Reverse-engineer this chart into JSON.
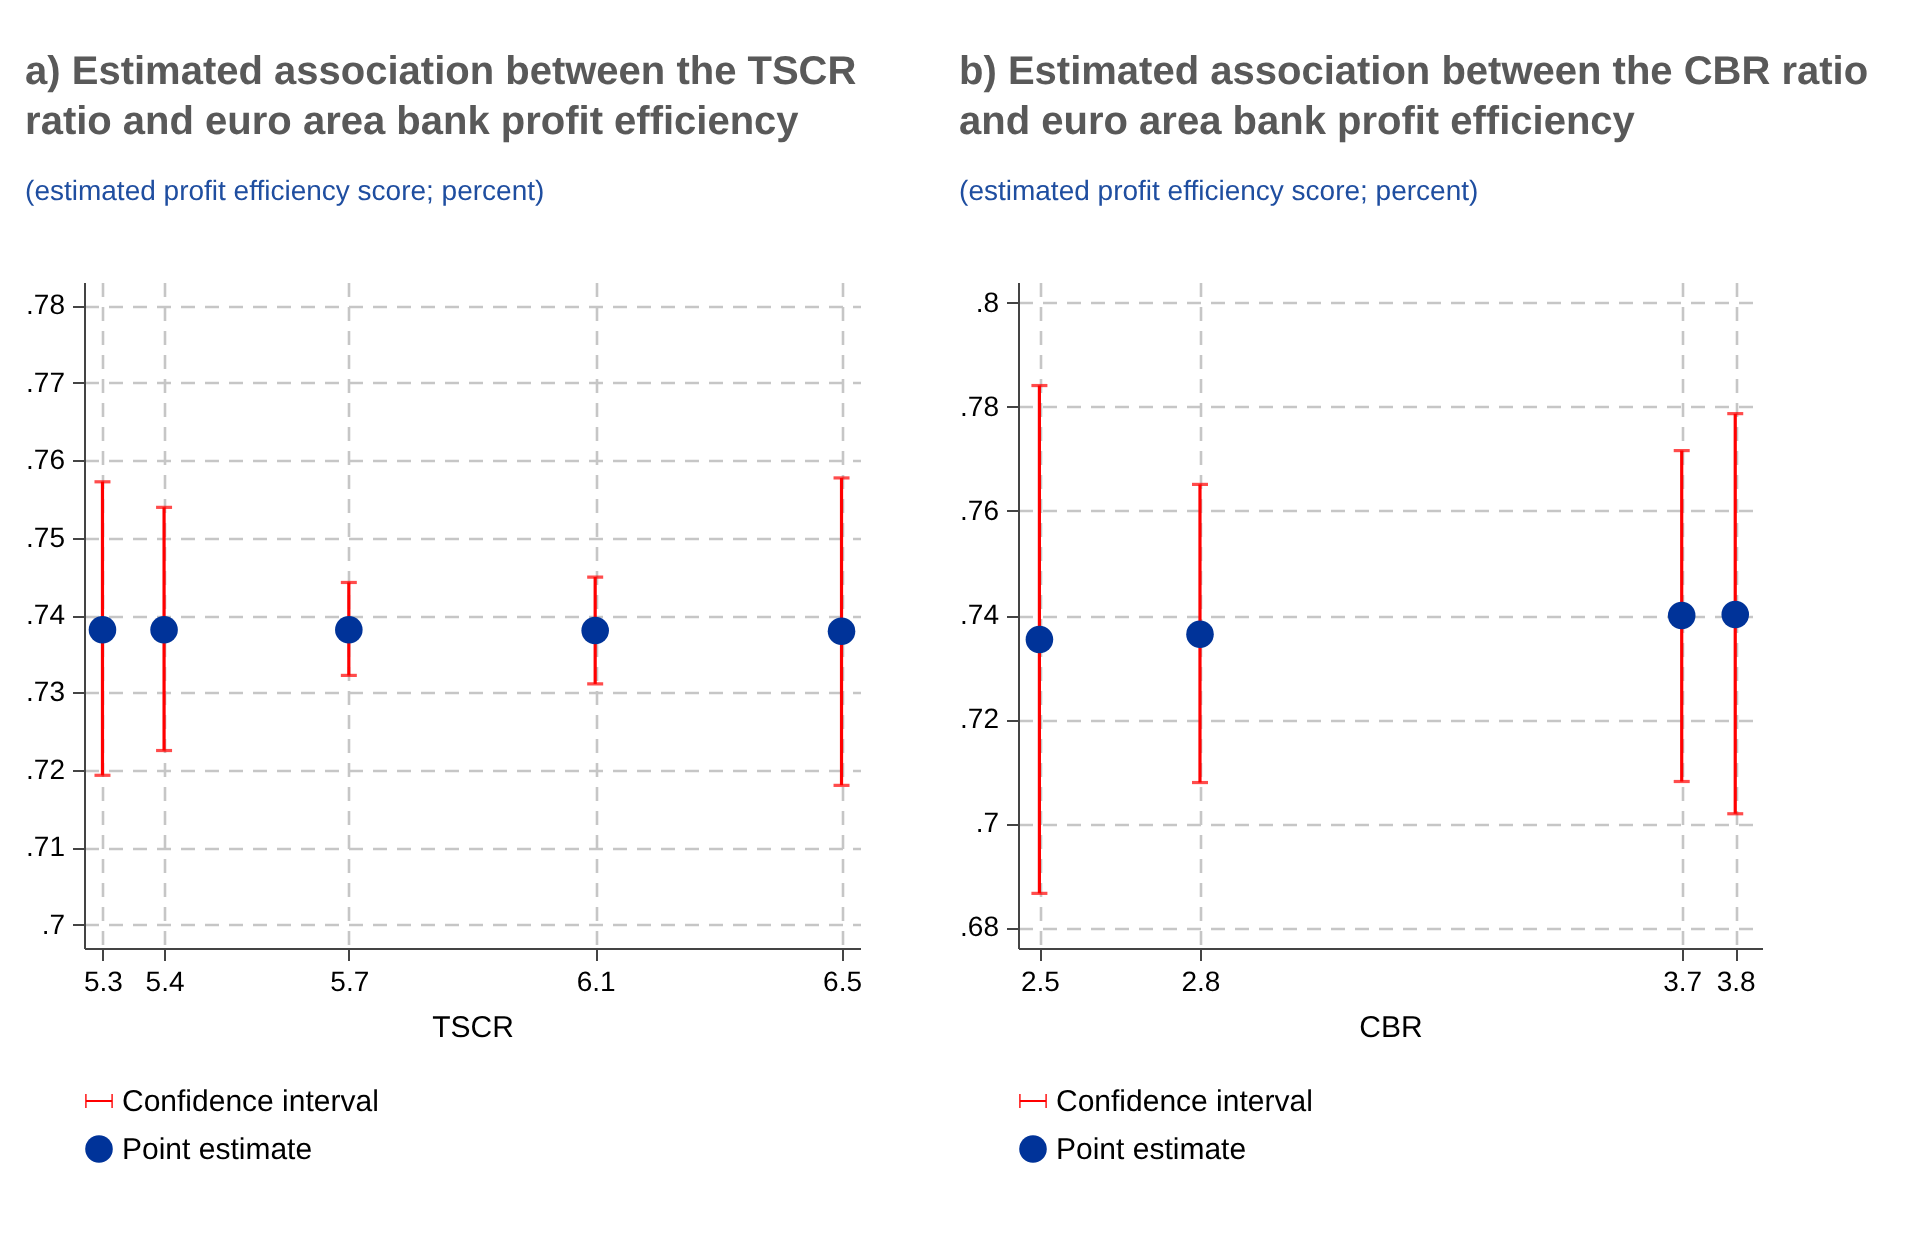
{
  "chart_data": [
    {
      "type": "scatter",
      "title": "a) Estimated association between the TSCR ratio and euro area bank profit efficiency",
      "subtitle": "(estimated profit efficiency score; percent)",
      "xlabel": "TSCR",
      "annotations": [
        "Confidence interval"
      ],
      "x": [
        5.3,
        5.4,
        5.7,
        6.1,
        6.5
      ],
      "xlim": [
        5.27,
        6.53
      ],
      "xticks": [
        5.3,
        5.4,
        5.7,
        6.1,
        6.5
      ],
      "ylim": [
        0.697,
        0.783
      ],
      "yticks": [
        {
          "value": 0.7,
          "label": ".7"
        },
        {
          "value": 0.71,
          "label": ".71"
        },
        {
          "value": 0.72,
          "label": ".72"
        },
        {
          "value": 0.73,
          "label": ".73"
        },
        {
          "value": 0.74,
          "label": ".74"
        },
        {
          "value": 0.75,
          "label": ".75"
        },
        {
          "value": 0.76,
          "label": ".76"
        },
        {
          "value": 0.77,
          "label": ".77"
        },
        {
          "value": 0.78,
          "label": ".78"
        }
      ],
      "grid": true,
      "legend": "bottom",
      "marker": "circle",
      "series": [
        {
          "name": "Point estimate",
          "color": "#003399",
          "values": [
            0.7381,
            0.7381,
            0.7381,
            0.738,
            0.7379
          ],
          "errors": [
            [
              0.7193,
              0.7572
            ],
            [
              0.7225,
              0.7539
            ],
            [
              0.7322,
              0.7442
            ],
            [
              0.7311,
              0.7449
            ],
            [
              0.718,
              0.7577
            ]
          ]
        }
      ]
    },
    {
      "type": "scatter",
      "title": "b) Estimated association between the CBR ratio and euro area bank profit efficiency",
      "subtitle": "(estimated profit efficiency score; percent)",
      "xlabel": "CBR",
      "annotations": [
        "Confidence interval"
      ],
      "x": [
        2.5,
        2.8,
        3.7,
        3.8
      ],
      "xlim": [
        2.46,
        3.85
      ],
      "xticks": [
        2.5,
        2.8,
        3.7,
        3.8
      ],
      "ylim": [
        0.676,
        0.804
      ],
      "yticks": [
        {
          "value": 0.68,
          "label": ".68"
        },
        {
          "value": 0.7,
          "label": ".7"
        },
        {
          "value": 0.72,
          "label": ".72"
        },
        {
          "value": 0.74,
          "label": ".74"
        },
        {
          "value": 0.76,
          "label": ".76"
        },
        {
          "value": 0.78,
          "label": ".78"
        },
        {
          "value": 0.8,
          "label": ".8"
        }
      ],
      "grid": true,
      "legend": "bottom",
      "marker": "circle",
      "series": [
        {
          "name": "Point estimate",
          "color": "#003399",
          "values": [
            0.7353,
            0.7363,
            0.7399,
            0.7401
          ],
          "errors": [
            [
              0.6865,
              0.7841
            ],
            [
              0.7078,
              0.7651
            ],
            [
              0.708,
              0.7716
            ],
            [
              0.7018,
              0.7787
            ]
          ]
        }
      ]
    }
  ]
}
